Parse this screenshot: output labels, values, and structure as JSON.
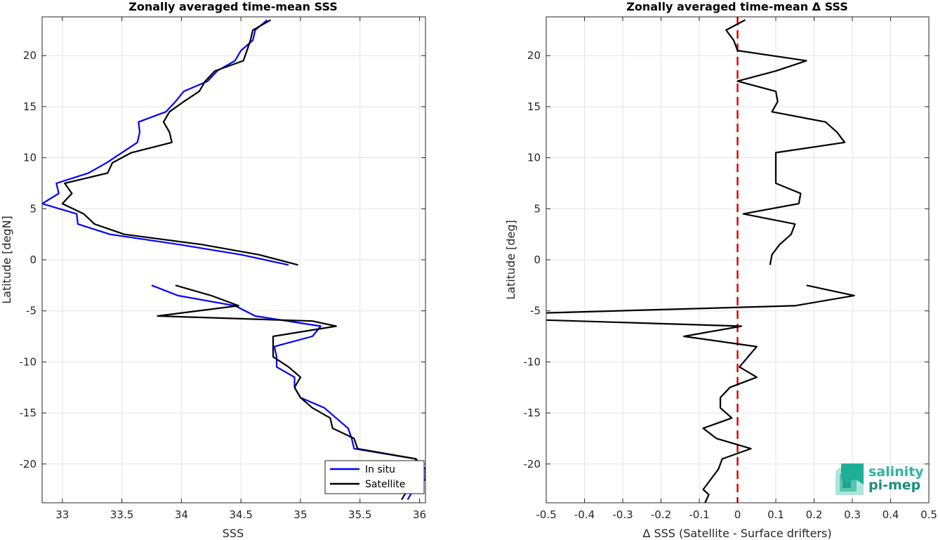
{
  "chart_data": [
    {
      "type": "line",
      "title": "Zonally averaged time-mean SSS",
      "xlabel": "SSS",
      "ylabel": "Latitude [degN]",
      "xlim": [
        32.83,
        36.05
      ],
      "ylim": [
        -23.8,
        23.8
      ],
      "xticks": [
        "33",
        "33.5",
        "34",
        "34.5",
        "35",
        "35.5",
        "36"
      ],
      "xtick_values": [
        33,
        33.5,
        34,
        34.5,
        35,
        35.5,
        36
      ],
      "yticks": [
        "20",
        "15",
        "10",
        "5",
        "0",
        "-5",
        "-10",
        "-15",
        "-20"
      ],
      "ytick_values": [
        20,
        15,
        10,
        5,
        0,
        -5,
        -10,
        -15,
        -20
      ],
      "grid": true,
      "legend_position": "bottom-right",
      "series": [
        {
          "name": "In situ",
          "color": "#0000ff",
          "segments": [
            [
              [
                34.72,
                23.5
              ],
              [
                34.62,
                22.5
              ],
              [
                34.6,
                21.5
              ],
              [
                34.5,
                20.5
              ],
              [
                34.45,
                19.5
              ],
              [
                34.3,
                18.5
              ],
              [
                34.22,
                17.5
              ],
              [
                34.02,
                16.5
              ],
              [
                33.95,
                15.5
              ],
              [
                33.87,
                14.5
              ],
              [
                33.64,
                13.5
              ],
              [
                33.65,
                12.5
              ],
              [
                33.63,
                11.5
              ],
              [
                33.5,
                10.5
              ],
              [
                33.37,
                9.5
              ],
              [
                33.22,
                8.5
              ],
              [
                32.95,
                7.5
              ],
              [
                32.97,
                6.5
              ],
              [
                32.83,
                5.5
              ],
              [
                33.12,
                4.5
              ],
              [
                33.13,
                3.5
              ],
              [
                33.4,
                2.5
              ],
              [
                33.98,
                1.5
              ],
              [
                34.5,
                0.5
              ],
              [
                34.9,
                -0.5
              ]
            ],
            [
              [
                33.75,
                -2.5
              ],
              [
                33.97,
                -3.5
              ],
              [
                34.45,
                -4.5
              ],
              [
                34.62,
                -5.5
              ],
              [
                35.17,
                -6.5
              ],
              [
                35.1,
                -7.5
              ],
              [
                34.78,
                -8.5
              ],
              [
                34.8,
                -9.5
              ],
              [
                34.8,
                -10.5
              ],
              [
                34.95,
                -11.5
              ],
              [
                34.95,
                -12.5
              ],
              [
                35.0,
                -13.5
              ],
              [
                35.2,
                -14.5
              ],
              [
                35.3,
                -15.5
              ],
              [
                35.4,
                -16.5
              ],
              [
                35.43,
                -17.5
              ],
              [
                35.45,
                -18.5
              ],
              [
                35.97,
                -19.5
              ],
              [
                36.05,
                -20.5
              ],
              [
                36.05,
                -21.5
              ],
              [
                35.95,
                -22.5
              ],
              [
                35.9,
                -23.5
              ]
            ]
          ]
        },
        {
          "name": "Satellite",
          "color": "#000000",
          "segments": [
            [
              [
                34.75,
                23.5
              ],
              [
                34.6,
                22.5
              ],
              [
                34.58,
                21.5
              ],
              [
                34.55,
                20.5
              ],
              [
                34.52,
                19.5
              ],
              [
                34.28,
                18.5
              ],
              [
                34.2,
                17.5
              ],
              [
                34.15,
                16.5
              ],
              [
                34.02,
                15.5
              ],
              [
                33.9,
                14.5
              ],
              [
                33.85,
                13.5
              ],
              [
                33.9,
                12.5
              ],
              [
                33.92,
                11.5
              ],
              [
                33.58,
                10.5
              ],
              [
                33.42,
                9.5
              ],
              [
                33.38,
                8.5
              ],
              [
                33.02,
                7.5
              ],
              [
                33.08,
                6.5
              ],
              [
                33.0,
                5.5
              ],
              [
                33.18,
                4.5
              ],
              [
                33.27,
                3.5
              ],
              [
                33.52,
                2.5
              ],
              [
                34.17,
                1.5
              ],
              [
                34.65,
                0.5
              ],
              [
                34.98,
                -0.5
              ]
            ],
            [
              [
                33.95,
                -2.5
              ],
              [
                34.25,
                -3.5
              ],
              [
                34.48,
                -4.5
              ],
              [
                33.8,
                -5.5
              ],
              [
                35.1,
                -6.0
              ],
              [
                35.3,
                -6.5
              ],
              [
                34.77,
                -7.5
              ],
              [
                34.77,
                -8.5
              ],
              [
                34.77,
                -9.5
              ],
              [
                34.9,
                -10.5
              ],
              [
                35.0,
                -11.5
              ],
              [
                34.95,
                -12.5
              ],
              [
                35.0,
                -13.5
              ],
              [
                35.1,
                -14.5
              ],
              [
                35.25,
                -15.5
              ],
              [
                35.27,
                -16.5
              ],
              [
                35.45,
                -17.5
              ],
              [
                35.48,
                -18.5
              ],
              [
                35.97,
                -19.5
              ],
              [
                35.97,
                -20.5
              ],
              [
                36.03,
                -21.5
              ],
              [
                35.9,
                -22.5
              ],
              [
                35.85,
                -23.5
              ]
            ]
          ]
        }
      ]
    },
    {
      "type": "line",
      "title": "Zonally averaged time-mean Δ SSS",
      "xlabel": "Δ SSS (Satellite - Surface drifters)",
      "ylabel": "Latitude [deg]",
      "xlim": [
        -0.5,
        0.5
      ],
      "ylim": [
        -23.8,
        23.8
      ],
      "xticks": [
        "-0.5",
        "-0.4",
        "-0.3",
        "-0.2",
        "-0.1",
        "0",
        "0.1",
        "0.2",
        "0.3",
        "0.4",
        "0.5"
      ],
      "xtick_values": [
        -0.5,
        -0.4,
        -0.3,
        -0.2,
        -0.1,
        0,
        0.1,
        0.2,
        0.3,
        0.4,
        0.5
      ],
      "yticks": [
        "20",
        "15",
        "10",
        "5",
        "0",
        "-5",
        "-10",
        "-15",
        "-20"
      ],
      "ytick_values": [
        20,
        15,
        10,
        5,
        0,
        -5,
        -10,
        -15,
        -20
      ],
      "grid": true,
      "reference_line": {
        "x": 0,
        "color": "#e60000",
        "style": "dashed"
      },
      "series": [
        {
          "name": "",
          "color": "#000000",
          "segments": [
            [
              [
                0.02,
                23.5
              ],
              [
                -0.03,
                22.5
              ],
              [
                -0.01,
                21.5
              ],
              [
                0.0,
                20.5
              ],
              [
                0.18,
                19.5
              ],
              [
                0.1,
                18.5
              ],
              [
                0.0,
                17.5
              ],
              [
                0.1,
                16.5
              ],
              [
                0.105,
                15.5
              ],
              [
                0.09,
                14.5
              ],
              [
                0.23,
                13.5
              ],
              [
                0.26,
                12.5
              ],
              [
                0.28,
                11.5
              ],
              [
                0.1,
                10.5
              ],
              [
                0.1,
                9.5
              ],
              [
                0.1,
                8.5
              ],
              [
                0.1,
                7.5
              ],
              [
                0.165,
                6.5
              ],
              [
                0.16,
                5.5
              ],
              [
                0.015,
                4.5
              ],
              [
                0.15,
                3.5
              ],
              [
                0.14,
                2.5
              ],
              [
                0.11,
                1.5
              ],
              [
                0.09,
                0.5
              ],
              [
                0.085,
                -0.5
              ]
            ],
            [
              [
                0.18,
                -2.5
              ],
              [
                0.305,
                -3.5
              ],
              [
                0.15,
                -4.5
              ],
              [
                -0.5,
                -5.2
              ]
            ],
            [
              [
                -0.5,
                -5.9
              ],
              [
                0.01,
                -6.5
              ],
              [
                -0.14,
                -7.5
              ],
              [
                0.05,
                -8.5
              ],
              [
                0.005,
                -10.5
              ],
              [
                0.05,
                -11.5
              ],
              [
                -0.02,
                -12.5
              ],
              [
                -0.045,
                -13.5
              ],
              [
                -0.045,
                -14.5
              ],
              [
                -0.015,
                -15.5
              ],
              [
                -0.09,
                -16.5
              ],
              [
                -0.055,
                -17.5
              ],
              [
                0.035,
                -18.5
              ],
              [
                -0.04,
                -19.5
              ],
              [
                -0.05,
                -20.5
              ],
              [
                -0.07,
                -21.5
              ],
              [
                -0.09,
                -22.5
              ],
              [
                -0.075,
                -23.0
              ],
              [
                -0.085,
                -23.8
              ]
            ]
          ]
        }
      ]
    }
  ],
  "legend": {
    "items": [
      {
        "label": "In situ",
        "color": "#0000ff"
      },
      {
        "label": "Satellite",
        "color": "#000000"
      }
    ]
  },
  "logo": {
    "line1": "salinity",
    "line2": "pi-mep",
    "color1": "#2bb5a0",
    "color2": "#1a8f80"
  }
}
